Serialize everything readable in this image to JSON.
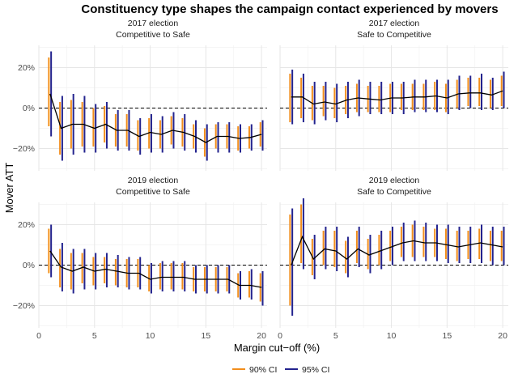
{
  "chart_data": {
    "type": "line",
    "title": "Constituency type shapes the campaign contact experienced by movers",
    "xlabel": "Margin cut−off (%)",
    "ylabel": "Mover ATT",
    "xlim": [
      0,
      20.5
    ],
    "ylim": [
      -0.31,
      0.31
    ],
    "xticks": [
      0,
      5,
      10,
      15,
      20
    ],
    "yticks": [
      -0.2,
      0,
      0.2
    ],
    "ytick_labels": [
      "−20%",
      "0%",
      "20%"
    ],
    "legend": {
      "position": "bottom",
      "entries": [
        {
          "label": "90% CI",
          "color": "#f28e1c"
        },
        {
          "label": "95% CI",
          "color": "#23238e"
        }
      ]
    },
    "colors": {
      "ci90": "#f28e1c",
      "ci95": "#23238e",
      "estimate": "#000000"
    },
    "x": [
      1,
      2,
      3,
      4,
      5,
      6,
      7,
      8,
      9,
      10,
      11,
      12,
      13,
      14,
      15,
      16,
      17,
      18,
      19,
      20
    ],
    "panels": [
      {
        "year": "2017 election",
        "type": "Competitive to Safe",
        "estimate": [
          0.07,
          -0.1,
          -0.08,
          -0.08,
          -0.1,
          -0.08,
          -0.11,
          -0.11,
          -0.14,
          -0.12,
          -0.13,
          -0.11,
          -0.12,
          -0.14,
          -0.17,
          -0.14,
          -0.14,
          -0.15,
          -0.145,
          -0.13
        ],
        "ci90": [
          [
            -0.09,
            0.25
          ],
          [
            -0.23,
            0.03
          ],
          [
            -0.2,
            0.04
          ],
          [
            -0.19,
            0.03
          ],
          [
            -0.19,
            0.0
          ],
          [
            -0.17,
            0.01
          ],
          [
            -0.19,
            -0.03
          ],
          [
            -0.19,
            -0.03
          ],
          [
            -0.21,
            -0.06
          ],
          [
            -0.2,
            -0.05
          ],
          [
            -0.2,
            -0.06
          ],
          [
            -0.18,
            -0.04
          ],
          [
            -0.19,
            -0.05
          ],
          [
            -0.2,
            -0.08
          ],
          [
            -0.24,
            -0.1
          ],
          [
            -0.2,
            -0.08
          ],
          [
            -0.2,
            -0.08
          ],
          [
            -0.21,
            -0.09
          ],
          [
            -0.2,
            -0.09
          ],
          [
            -0.19,
            -0.07
          ]
        ],
        "ci95": [
          [
            -0.14,
            0.28
          ],
          [
            -0.26,
            0.06
          ],
          [
            -0.23,
            0.07
          ],
          [
            -0.22,
            0.06
          ],
          [
            -0.22,
            0.02
          ],
          [
            -0.2,
            0.03
          ],
          [
            -0.21,
            -0.01
          ],
          [
            -0.21,
            -0.01
          ],
          [
            -0.23,
            -0.05
          ],
          [
            -0.22,
            -0.03
          ],
          [
            -0.22,
            -0.04
          ],
          [
            -0.2,
            -0.02
          ],
          [
            -0.21,
            -0.03
          ],
          [
            -0.22,
            -0.06
          ],
          [
            -0.26,
            -0.08
          ],
          [
            -0.22,
            -0.07
          ],
          [
            -0.22,
            -0.07
          ],
          [
            -0.22,
            -0.08
          ],
          [
            -0.21,
            -0.08
          ],
          [
            -0.21,
            -0.06
          ]
        ]
      },
      {
        "year": "2017 election",
        "type": "Safe to Competitive",
        "estimate": [
          0.055,
          0.055,
          0.02,
          0.03,
          0.02,
          0.04,
          0.05,
          0.045,
          0.04,
          0.05,
          0.05,
          0.055,
          0.055,
          0.06,
          0.05,
          0.07,
          0.075,
          0.075,
          0.065,
          0.085
        ],
        "ci90": [
          [
            -0.07,
            0.17
          ],
          [
            -0.05,
            0.15
          ],
          [
            -0.06,
            0.11
          ],
          [
            -0.04,
            0.11
          ],
          [
            -0.05,
            0.1
          ],
          [
            -0.03,
            0.11
          ],
          [
            -0.02,
            0.12
          ],
          [
            -0.02,
            0.11
          ],
          [
            -0.02,
            0.11
          ],
          [
            -0.02,
            0.12
          ],
          [
            -0.01,
            0.12
          ],
          [
            -0.01,
            0.12
          ],
          [
            -0.01,
            0.12
          ],
          [
            -0.01,
            0.13
          ],
          [
            -0.02,
            0.12
          ],
          [
            0.0,
            0.14
          ],
          [
            0.01,
            0.15
          ],
          [
            0.01,
            0.15
          ],
          [
            0.0,
            0.14
          ],
          [
            0.01,
            0.16
          ]
        ],
        "ci95": [
          [
            -0.08,
            0.19
          ],
          [
            -0.07,
            0.17
          ],
          [
            -0.08,
            0.13
          ],
          [
            -0.06,
            0.13
          ],
          [
            -0.07,
            0.12
          ],
          [
            -0.05,
            0.13
          ],
          [
            -0.04,
            0.14
          ],
          [
            -0.03,
            0.13
          ],
          [
            -0.03,
            0.13
          ],
          [
            -0.03,
            0.13
          ],
          [
            -0.03,
            0.13
          ],
          [
            -0.02,
            0.14
          ],
          [
            -0.02,
            0.14
          ],
          [
            -0.02,
            0.14
          ],
          [
            -0.03,
            0.14
          ],
          [
            -0.01,
            0.16
          ],
          [
            0.0,
            0.16
          ],
          [
            -0.01,
            0.17
          ],
          [
            -0.01,
            0.15
          ],
          [
            0.0,
            0.18
          ]
        ]
      },
      {
        "year": "2019 election",
        "type": "Competitive to Safe",
        "estimate": [
          0.07,
          -0.01,
          -0.03,
          -0.01,
          -0.03,
          -0.02,
          -0.03,
          -0.04,
          -0.04,
          -0.07,
          -0.06,
          -0.06,
          -0.06,
          -0.07,
          -0.07,
          -0.07,
          -0.07,
          -0.1,
          -0.1,
          -0.11
        ],
        "ci90": [
          [
            -0.04,
            0.18
          ],
          [
            -0.11,
            0.08
          ],
          [
            -0.12,
            0.06
          ],
          [
            -0.09,
            0.06
          ],
          [
            -0.1,
            0.04
          ],
          [
            -0.09,
            0.04
          ],
          [
            -0.1,
            0.03
          ],
          [
            -0.11,
            0.03
          ],
          [
            -0.11,
            0.03
          ],
          [
            -0.13,
            0.0
          ],
          [
            -0.12,
            0.01
          ],
          [
            -0.12,
            0.01
          ],
          [
            -0.12,
            0.01
          ],
          [
            -0.13,
            -0.01
          ],
          [
            -0.13,
            -0.01
          ],
          [
            -0.13,
            -0.01
          ],
          [
            -0.13,
            -0.01
          ],
          [
            -0.16,
            -0.04
          ],
          [
            -0.16,
            -0.03
          ],
          [
            -0.18,
            -0.04
          ]
        ],
        "ci95": [
          [
            -0.06,
            0.2
          ],
          [
            -0.13,
            0.11
          ],
          [
            -0.14,
            0.08
          ],
          [
            -0.12,
            0.08
          ],
          [
            -0.12,
            0.06
          ],
          [
            -0.11,
            0.06
          ],
          [
            -0.11,
            0.05
          ],
          [
            -0.12,
            0.04
          ],
          [
            -0.12,
            0.04
          ],
          [
            -0.14,
            0.01
          ],
          [
            -0.13,
            0.02
          ],
          [
            -0.13,
            0.02
          ],
          [
            -0.13,
            0.02
          ],
          [
            -0.14,
            0.0
          ],
          [
            -0.14,
            0.0
          ],
          [
            -0.14,
            0.0
          ],
          [
            -0.14,
            0.0
          ],
          [
            -0.17,
            -0.03
          ],
          [
            -0.17,
            -0.02
          ],
          [
            -0.2,
            -0.03
          ]
        ]
      },
      {
        "year": "2019 election",
        "type": "Safe to Competitive",
        "estimate": [
          0.0,
          0.14,
          0.03,
          0.08,
          0.07,
          0.03,
          0.08,
          0.05,
          0.07,
          0.09,
          0.11,
          0.12,
          0.11,
          0.11,
          0.1,
          0.09,
          0.1,
          0.11,
          0.1,
          0.09
        ],
        "ci90": [
          [
            -0.2,
            0.25
          ],
          [
            0.01,
            0.3
          ],
          [
            -0.05,
            0.13
          ],
          [
            0.0,
            0.17
          ],
          [
            -0.01,
            0.17
          ],
          [
            -0.04,
            0.12
          ],
          [
            0.01,
            0.17
          ],
          [
            -0.02,
            0.13
          ],
          [
            0.0,
            0.15
          ],
          [
            0.02,
            0.17
          ],
          [
            0.04,
            0.19
          ],
          [
            0.04,
            0.2
          ],
          [
            0.04,
            0.19
          ],
          [
            0.04,
            0.18
          ],
          [
            0.03,
            0.18
          ],
          [
            0.02,
            0.17
          ],
          [
            0.03,
            0.17
          ],
          [
            0.03,
            0.18
          ],
          [
            0.02,
            0.17
          ],
          [
            0.02,
            0.17
          ]
        ],
        "ci95": [
          [
            -0.25,
            0.28
          ],
          [
            -0.02,
            0.33
          ],
          [
            -0.07,
            0.15
          ],
          [
            -0.02,
            0.19
          ],
          [
            -0.03,
            0.19
          ],
          [
            -0.06,
            0.14
          ],
          [
            -0.01,
            0.19
          ],
          [
            -0.04,
            0.15
          ],
          [
            -0.02,
            0.17
          ],
          [
            0.0,
            0.19
          ],
          [
            0.02,
            0.21
          ],
          [
            0.02,
            0.22
          ],
          [
            0.02,
            0.21
          ],
          [
            0.02,
            0.2
          ],
          [
            0.01,
            0.2
          ],
          [
            0.01,
            0.19
          ],
          [
            0.01,
            0.19
          ],
          [
            0.01,
            0.2
          ],
          [
            0.0,
            0.19
          ],
          [
            0.0,
            0.19
          ]
        ]
      }
    ]
  }
}
